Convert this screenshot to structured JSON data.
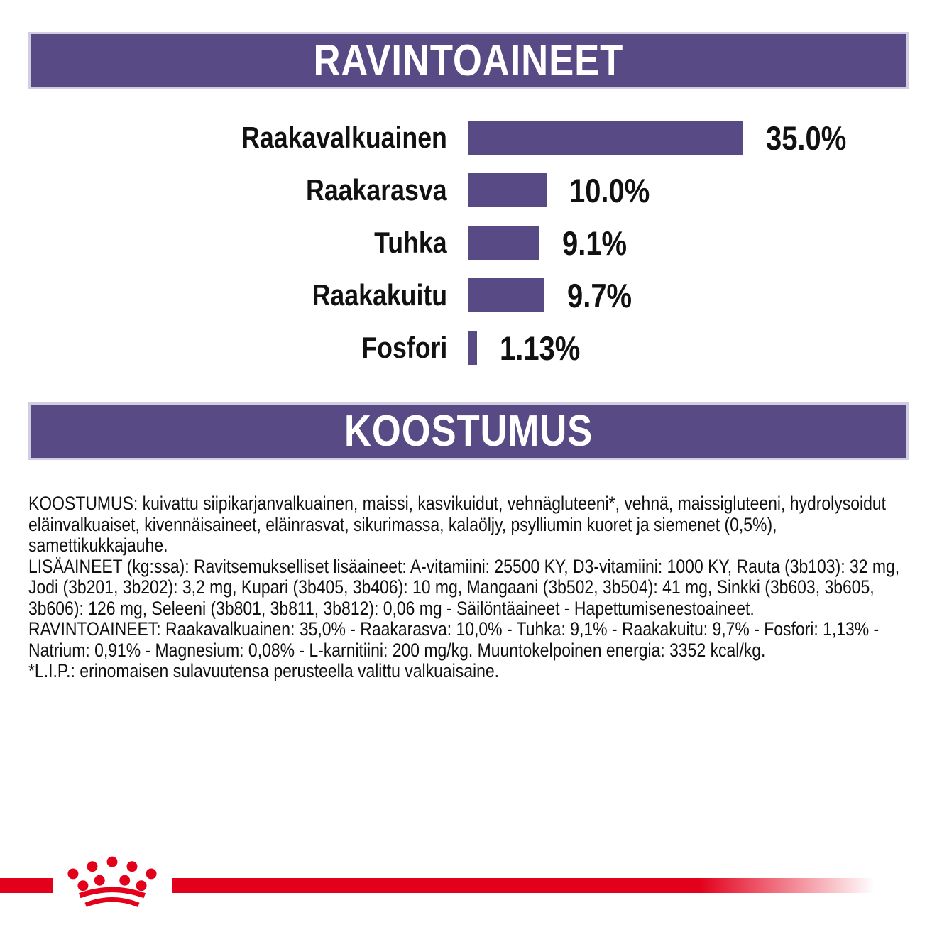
{
  "page": {
    "background": "#ffffff",
    "accent_purple": "#574a85",
    "accent_red": "#e3001b",
    "text_color": "#111111"
  },
  "sections": {
    "nutrients_banner_title": "RAVINTOAINEET",
    "composition_banner_title": "KOOSTUMUS"
  },
  "chart_data": {
    "type": "bar",
    "orientation": "horizontal",
    "title": "RAVINTOAINEET",
    "unit": "%",
    "categories": [
      "Raakavalkuainen",
      "Raakarasva",
      "Tuhka",
      "Raakakuitu",
      "Fosfori"
    ],
    "values": [
      35.0,
      10.0,
      9.1,
      9.7,
      1.13
    ],
    "value_labels": [
      "35.0%",
      "10.0%",
      "9.1%",
      "9.7%",
      "1.13%"
    ],
    "bar_color": "#574a85",
    "xlim": [
      0,
      35
    ],
    "grid": false,
    "legend": false,
    "value_label_position": "right-of-bar"
  },
  "composition_text": {
    "paragraphs": [
      "KOOSTUMUS: kuivattu siipikarjanvalkuainen, maissi, kasvikuidut, vehnägluteeni*, vehnä, maissigluteeni, hydrolysoidut eläinvalkuaiset, kivennäisaineet, eläinrasvat, sikurimassa, kalaöljy, psylliumin kuoret ja siemenet (0,5%), samettikukkajauhe.",
      "LISÄAINEET (kg:ssa): Ravitsemukselliset lisäaineet: A-vitamiini: 25500 KY, D3-vitamiini: 1000 KY, Rauta (3b103): 32 mg, Jodi (3b201, 3b202): 3,2 mg, Kupari (3b405, 3b406): 10 mg, Mangaani (3b502, 3b504): 41 mg, Sinkki (3b603, 3b605, 3b606): 126 mg, Seleeni (3b801, 3b811, 3b812): 0,06 mg - Säilöntäaineet - Hapettumisenestoaineet.",
      "RAVINTOAINEET: Raakavalkuainen: 35,0% - Raakarasva: 10,0% - Tuhka: 9,1% - Raakakuitu: 9,7% - Fosfori: 1,13% - Natrium: 0,91% - Magnesium: 0,08% - L-karnitiini: 200 mg/kg. Muuntokelpoinen energia: 3352 kcal/kg.",
      "*L.I.P.: erinomaisen sulavuutensa perusteella valittu valkuaisaine."
    ]
  },
  "footer": {
    "logo": "royal-canin-crown",
    "stripe_color": "#e3001b"
  }
}
